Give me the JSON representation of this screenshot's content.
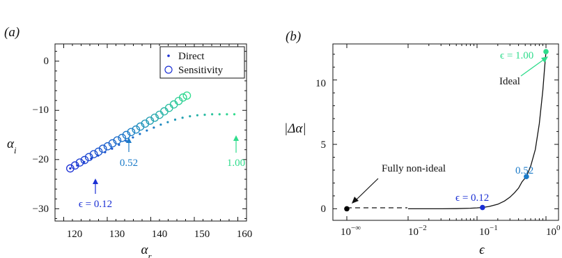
{
  "chart_data": [
    {
      "panel_label": "(a)",
      "type": "scatter",
      "xlabel": "αr",
      "ylabel": "αi",
      "xlim": [
        118,
        162
      ],
      "ylim": [
        -32.5,
        3.5
      ],
      "xticks": [
        120,
        130,
        140,
        150,
        160
      ],
      "yticks": [
        0,
        -10,
        -20,
        -30
      ],
      "grid": false,
      "legend_placement": "top-right",
      "series": [
        {
          "name": "Direct",
          "marker": "dot",
          "points": [
            [
              121.5,
              -21.8
            ],
            [
              123.1,
              -21.2
            ],
            [
              124.7,
              -20.5
            ],
            [
              126.3,
              -19.8
            ],
            [
              127.9,
              -19.2
            ],
            [
              129.5,
              -18.5
            ],
            [
              131.1,
              -17.8
            ],
            [
              132.7,
              -17.0
            ],
            [
              134.3,
              -16.2
            ],
            [
              135.9,
              -15.5
            ],
            [
              137.5,
              -14.8
            ],
            [
              139.1,
              -14.1
            ],
            [
              140.7,
              -13.5
            ],
            [
              142.3,
              -12.9
            ],
            [
              143.9,
              -12.4
            ],
            [
              145.6,
              -11.9
            ],
            [
              147.3,
              -11.5
            ],
            [
              149.0,
              -11.2
            ],
            [
              150.7,
              -11.0
            ],
            [
              152.4,
              -10.9
            ],
            [
              154.1,
              -10.8
            ],
            [
              155.8,
              -10.8
            ],
            [
              157.5,
              -10.8
            ],
            [
              159.2,
              -10.8
            ]
          ]
        },
        {
          "name": "Sensitivity",
          "marker": "open-circle",
          "points": [
            [
              121.5,
              -21.8
            ],
            [
              122.6,
              -21.2
            ],
            [
              123.7,
              -20.6
            ],
            [
              124.8,
              -20.1
            ],
            [
              125.8,
              -19.5
            ],
            [
              126.9,
              -18.9
            ],
            [
              128.0,
              -18.4
            ],
            [
              129.0,
              -17.8
            ],
            [
              130.1,
              -17.3
            ],
            [
              131.2,
              -16.7
            ],
            [
              132.3,
              -16.1
            ],
            [
              133.4,
              -15.6
            ],
            [
              134.4,
              -15.0
            ],
            [
              135.5,
              -14.4
            ],
            [
              136.6,
              -13.9
            ],
            [
              137.6,
              -13.3
            ],
            [
              138.7,
              -12.7
            ],
            [
              139.8,
              -12.1
            ],
            [
              140.9,
              -11.5
            ],
            [
              142.0,
              -10.9
            ],
            [
              143.1,
              -10.2
            ],
            [
              144.2,
              -9.5
            ],
            [
              145.3,
              -8.8
            ],
            [
              146.4,
              -8.1
            ],
            [
              147.4,
              -7.4
            ],
            [
              148.3,
              -7.0
            ]
          ]
        }
      ],
      "annotations": [
        {
          "text": "ϵ = 0.12",
          "x": 123.7,
          "y": -27.5,
          "color": "#1a2fd4"
        },
        {
          "text": "0.52",
          "x": 134.6,
          "y": -24.4,
          "color": "#1a7ac8"
        },
        {
          "text": "1.00",
          "x": 159.9,
          "y": -24.4,
          "color": "#2fdc8c"
        }
      ]
    },
    {
      "panel_label": "(b)",
      "type": "line",
      "xlabel": "ϵ",
      "ylabel": "|Δα|",
      "x_scale": "log",
      "ylim": [
        -0.9,
        12.8
      ],
      "xtick_labels": [
        "10−∞",
        "10−2",
        "10−1",
        "100"
      ],
      "yticks": [
        0,
        5,
        10
      ],
      "grid": false,
      "series": [
        {
          "name": "",
          "points": [
            [
              0.01,
              0.0
            ],
            [
              0.03,
              0.0
            ],
            [
              0.05,
              0.01
            ],
            [
              0.08,
              0.04
            ],
            [
              0.1,
              0.07
            ],
            [
              0.12,
              0.1
            ],
            [
              0.15,
              0.18
            ],
            [
              0.2,
              0.35
            ],
            [
              0.25,
              0.6
            ],
            [
              0.3,
              0.9
            ],
            [
              0.35,
              1.25
            ],
            [
              0.4,
              1.6
            ],
            [
              0.45,
              2.1
            ],
            [
              0.52,
              2.5
            ],
            [
              0.6,
              3.3
            ],
            [
              0.7,
              4.6
            ],
            [
              0.8,
              6.6
            ],
            [
              0.9,
              9.2
            ],
            [
              0.95,
              10.8
            ],
            [
              1.0,
              12.2
            ]
          ]
        }
      ],
      "highlighted_points": [
        {
          "label": "Fully non-ideal",
          "x_label": "10−∞",
          "y": 0,
          "color": "#000000"
        },
        {
          "label": "ϵ = 0.12",
          "x": 0.12,
          "y": 0.1,
          "color": "#1a2fd4"
        },
        {
          "label": "0.52",
          "x": 0.52,
          "y": 2.5,
          "color": "#1a7ac8"
        },
        {
          "label": "ϵ = 1.00",
          "x": 1.0,
          "y": 12.2,
          "color": "#2fdc8c"
        }
      ],
      "annotations": [
        {
          "text": "Fully non-ideal"
        },
        {
          "text": "Ideal"
        },
        {
          "text": "ϵ = 1.00",
          "color": "#2fdc8c"
        },
        {
          "text": "ϵ = 0.12",
          "color": "#1a2fd4"
        },
        {
          "text": "0.52",
          "color": "#1a7ac8"
        }
      ]
    }
  ],
  "text": {
    "panel_a": "(a)",
    "panel_b": "(b)",
    "legend_direct": "Direct",
    "legend_sensitivity": "Sensitivity",
    "a_xticks": [
      "120",
      "130",
      "140",
      "150",
      "160"
    ],
    "a_yticks": [
      "0",
      "−10",
      "−20",
      "−30"
    ],
    "a_annot_012": "ϵ = 0.12",
    "a_annot_052": "0.52",
    "a_annot_100": "1.00",
    "b_yticks": [
      "0",
      "5",
      "10"
    ],
    "b_xtick_base": [
      "10",
      "10",
      "10",
      "10"
    ],
    "b_xtick_exp": [
      "−∞",
      "−2",
      "−1",
      "0"
    ],
    "b_ylabel": "|Δα|",
    "b_xlabel": "ϵ",
    "b_fully": "Fully non-ideal",
    "b_ideal": "Ideal",
    "b_eps100": "ϵ = 1.00",
    "b_eps012": "ϵ = 0.12",
    "b_052": "0.52"
  },
  "colors": {
    "start": "#1a2fd4",
    "mid": "#1a7ac8",
    "end": "#2fdc8c",
    "axis": "#111111"
  }
}
